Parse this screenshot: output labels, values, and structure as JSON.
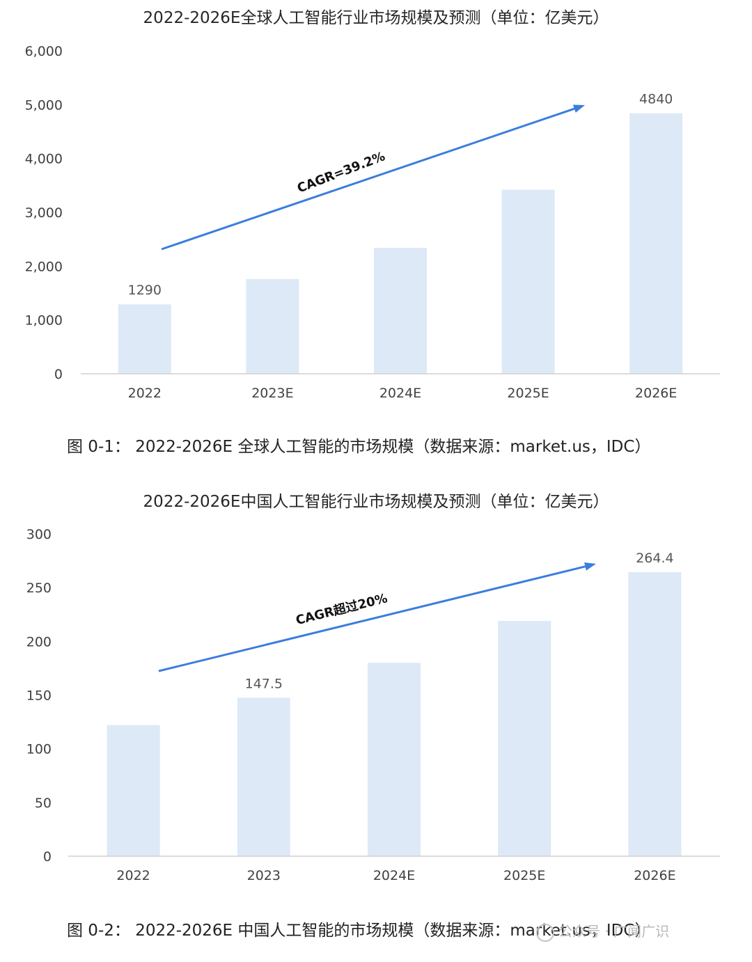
{
  "charts": [
    {
      "title": "2022-2026E全球人工智能行业市场规模及预测（单位：亿美元）",
      "caption": "图 0-1： 2022-2026E 全球人工智能的市场规模（数据来源：market.us，IDC）",
      "annotation": "CAGR=39.2%"
    },
    {
      "title": "2022-2026E中国人工智能行业市场规模及预测（单位：亿美元）",
      "caption": "图 0-2： 2022-2026E 中国人工智能的市场规模（数据来源：market.us，IDC）",
      "annotation": "CAGR超过20%"
    }
  ],
  "watermark": "公众号 · 广闻广识",
  "colors": {
    "bar": "#dde9f6",
    "arrow": "#3b7ddd",
    "axis": "#d0d0d0"
  },
  "chart_data": [
    {
      "type": "bar",
      "title": "2022-2026E全球人工智能行业市场规模及预测（单位：亿美元）",
      "categories": [
        "2022",
        "2023E",
        "2024E",
        "2025E",
        "2026E"
      ],
      "values": [
        1290,
        1760,
        2340,
        3420,
        4840
      ],
      "data_labels": [
        "1290",
        "",
        "",
        "",
        "4840"
      ],
      "yticks": [
        "0",
        "1,000",
        "2,000",
        "3,000",
        "4,000",
        "5,000",
        "6,000"
      ],
      "ylim": [
        0,
        6000
      ],
      "grid": false,
      "annotation": "CAGR=39.2%"
    },
    {
      "type": "bar",
      "title": "2022-2026E中国人工智能行业市场规模及预测（单位：亿美元）",
      "categories": [
        "2022",
        "2023",
        "2024E",
        "2025E",
        "2026E"
      ],
      "values": [
        122,
        147.5,
        180,
        219,
        264.4
      ],
      "data_labels": [
        "",
        "147.5",
        "",
        "",
        "264.4"
      ],
      "yticks": [
        "0",
        "50",
        "100",
        "150",
        "200",
        "250",
        "300"
      ],
      "ylim": [
        0,
        300
      ],
      "grid": false,
      "annotation": "CAGR超过20%"
    }
  ]
}
